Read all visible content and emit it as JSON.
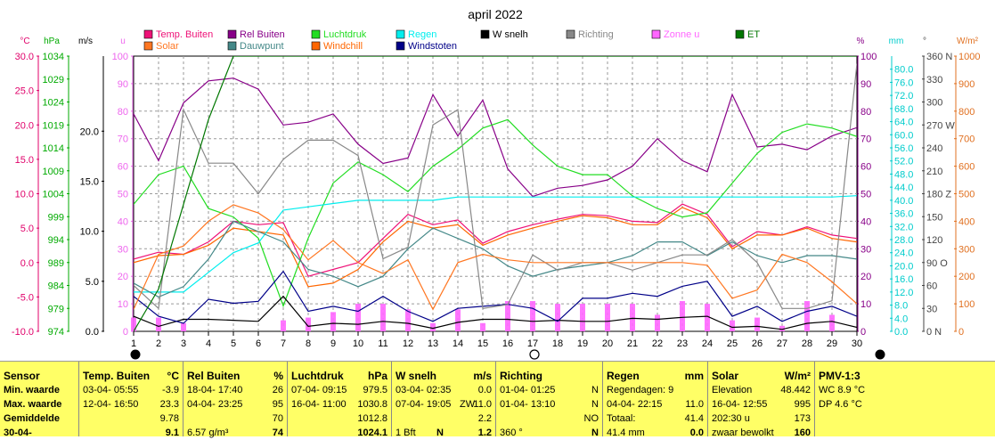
{
  "chart_data": {
    "type": "line",
    "title": "april 2022",
    "x": [
      1,
      2,
      3,
      4,
      5,
      6,
      7,
      8,
      9,
      10,
      11,
      12,
      13,
      14,
      15,
      16,
      17,
      18,
      19,
      20,
      21,
      22,
      23,
      24,
      25,
      26,
      27,
      28,
      29,
      30
    ],
    "x_ticks": [
      "1",
      "2",
      "3",
      "4",
      "5",
      "6",
      "7",
      "8",
      "9",
      "10",
      "11",
      "12",
      "13",
      "14",
      "15",
      "16",
      "17",
      "18",
      "19",
      "20",
      "21",
      "22",
      "23",
      "24",
      "25",
      "26",
      "27",
      "28",
      "29",
      "30"
    ],
    "axes": {
      "temp": {
        "unit": "°C",
        "range": [
          -10,
          30
        ],
        "ticks": [
          "30.0",
          "25.0",
          "20.0",
          "15.0",
          "10.0",
          "5.0",
          "0.0",
          "-5.0",
          "-10.0"
        ],
        "color": "#e0006a"
      },
      "press": {
        "unit": "hPa",
        "range": [
          974,
          1039
        ],
        "ticks": [
          "1034",
          "1029",
          "1024",
          "1019",
          "1014",
          "1009",
          "1004",
          "999",
          "994",
          "989",
          "984",
          "979",
          "974"
        ],
        "color": "#00aa00"
      },
      "wind": {
        "unit": "m/s",
        "range": [
          0,
          27.5
        ],
        "ticks": [
          "20.0",
          "15.0",
          "10.0",
          "5.0",
          "0.0"
        ],
        "color": "#000000"
      },
      "uv": {
        "unit": "u",
        "range": [
          0,
          100
        ],
        "ticks": [
          "100",
          "90",
          "80",
          "70",
          "60",
          "50",
          "40",
          "30",
          "20",
          "10",
          "0"
        ],
        "color": "#ee66ee"
      },
      "hum": {
        "unit": "%",
        "range": [
          0,
          100
        ],
        "ticks": [
          "100",
          "90",
          "80",
          "70",
          "60",
          "50",
          "40",
          "30",
          "20",
          "10",
          "0"
        ],
        "color": "#880088"
      },
      "rain": {
        "unit": "mm",
        "range": [
          0,
          84
        ],
        "ticks": [
          "80.0",
          "76.0",
          "72.0",
          "68.0",
          "64.0",
          "60.0",
          "56.0",
          "52.0",
          "48.0",
          "44.0",
          "40.0",
          "36.0",
          "32.0",
          "28.0",
          "24.0",
          "20.0",
          "16.0",
          "12.0",
          "8.0",
          "4.0",
          "0.0"
        ],
        "color": "#00cccc"
      },
      "dir": {
        "unit": "°",
        "range": [
          0,
          360
        ],
        "ticks": [
          "360 N",
          "330",
          "300",
          "270 W",
          "240",
          "210",
          "180 Z",
          "150",
          "120",
          "90 O",
          "60",
          "30",
          "0 N"
        ],
        "color": "#444444"
      },
      "solar": {
        "unit": "W/m²",
        "range": [
          0,
          1000
        ],
        "ticks": [
          "1000",
          "900",
          "800",
          "700",
          "600",
          "500",
          "400",
          "300",
          "200",
          "100",
          "0"
        ],
        "color": "#e07020"
      }
    },
    "legend": [
      {
        "name": "Temp. Buiten",
        "color": "#ee1177"
      },
      {
        "name": "Rel Buiten",
        "color": "#880088"
      },
      {
        "name": "Luchtdruk",
        "color": "#22dd22"
      },
      {
        "name": "Regen",
        "color": "#00eeee"
      },
      {
        "name": "W snelh",
        "color": "#000000"
      },
      {
        "name": "Richting",
        "color": "#888888"
      },
      {
        "name": "Zonne u",
        "color": "#ff66ff"
      },
      {
        "name": "ET",
        "color": "#007700"
      },
      {
        "name": "Solar",
        "color": "#ff7722"
      },
      {
        "name": "Dauwpunt",
        "color": "#448888"
      },
      {
        "name": "Windchill",
        "color": "#ff6600"
      },
      {
        "name": "Windstoten",
        "color": "#000088"
      }
    ],
    "series": [
      {
        "name": "Temp. Buiten",
        "axis": "temp",
        "color": "#ee1177",
        "values": [
          0.5,
          1.5,
          1.2,
          3.0,
          6.0,
          5.5,
          5.8,
          -2.0,
          -1.0,
          0.0,
          3.5,
          7.0,
          5.5,
          6.2,
          2.8,
          4.5,
          5.5,
          6.3,
          7.0,
          6.8,
          6.0,
          5.8,
          8.5,
          7.0,
          2.3,
          4.5,
          4.0,
          5.2,
          4.0,
          3.5
        ]
      },
      {
        "name": "Windchill",
        "axis": "temp",
        "color": "#ff6600",
        "values": [
          0.0,
          1.0,
          1.2,
          2.5,
          5.0,
          4.5,
          4.0,
          -3.5,
          -3.0,
          -1.0,
          3.0,
          6.0,
          5.0,
          5.5,
          2.5,
          4.0,
          5.0,
          6.0,
          6.8,
          6.5,
          5.5,
          5.5,
          8.0,
          6.5,
          2.0,
          4.0,
          4.0,
          5.0,
          3.5,
          3.0
        ]
      },
      {
        "name": "Rel Buiten",
        "axis": "hum",
        "color": "#880088",
        "values": [
          79,
          62,
          83,
          91,
          92,
          88,
          75,
          76,
          79,
          68,
          61,
          63,
          86,
          71,
          84,
          59,
          49,
          52,
          53,
          55,
          60,
          70,
          62,
          58,
          86,
          67,
          68,
          66,
          71,
          74
        ]
      },
      {
        "name": "Luchtdruk",
        "axis": "press",
        "color": "#22dd22",
        "values": [
          1004,
          1011,
          1013,
          1003,
          1001,
          996,
          980,
          996,
          1009,
          1014,
          1011,
          1007,
          1013,
          1017,
          1022,
          1024,
          1018,
          1013,
          1011,
          1011,
          1006,
          1003,
          1001,
          1002,
          1009,
          1016,
          1021,
          1023,
          1022,
          1020
        ]
      },
      {
        "name": "Regen",
        "axis": "rain",
        "color": "#00eeee",
        "values": [
          12,
          12,
          12,
          18,
          24,
          27,
          37,
          38,
          39,
          40,
          40,
          40,
          40,
          41,
          41,
          41,
          41,
          41,
          41,
          41,
          41,
          41,
          41,
          41,
          41,
          41,
          41,
          41,
          41,
          41.4
        ]
      },
      {
        "name": "Dauwpunt",
        "axis": "temp",
        "color": "#448888",
        "values": [
          -3.0,
          -5.0,
          -3.5,
          0.5,
          6.0,
          4.5,
          3.0,
          -1.0,
          -2.0,
          -3.5,
          -2.0,
          2.0,
          5.0,
          3.5,
          2.0,
          -0.5,
          -2.0,
          -1.0,
          -0.5,
          0.0,
          1.0,
          3.0,
          3.0,
          1.0,
          3.0,
          1.0,
          0.0,
          1.0,
          1.0,
          0.5
        ]
      },
      {
        "name": "W snelh",
        "axis": "wind",
        "color": "#000000",
        "values": [
          1.5,
          0.5,
          1.2,
          1.2,
          1.1,
          1.0,
          3.5,
          0.5,
          0.8,
          0.7,
          1.0,
          0.8,
          0.3,
          0.9,
          1.2,
          1.2,
          1.0,
          1.1,
          1.0,
          1.0,
          1.3,
          1.2,
          1.4,
          1.5,
          0.4,
          0.5,
          0.2,
          0.8,
          1.0,
          0.4
        ]
      },
      {
        "name": "Windstoten",
        "axis": "wind",
        "color": "#000088",
        "values": [
          3.5,
          1.5,
          0.8,
          3.2,
          2.8,
          3.0,
          6.0,
          2.0,
          2.5,
          2.0,
          3.5,
          2.0,
          1.0,
          2.3,
          2.5,
          2.7,
          2.3,
          1.0,
          3.3,
          3.3,
          3.8,
          3.5,
          4.5,
          5.0,
          1.5,
          2.5,
          1.0,
          2.0,
          2.5,
          1.5
        ]
      },
      {
        "name": "Richting",
        "axis": "dir",
        "color": "#888888",
        "values": [
          60,
          30,
          290,
          220,
          220,
          180,
          225,
          250,
          250,
          230,
          95,
          110,
          270,
          290,
          30,
          35,
          100,
          80,
          90,
          90,
          80,
          90,
          100,
          100,
          120,
          90,
          30,
          30,
          40,
          350
        ]
      },
      {
        "name": "Solar",
        "axis": "solar",
        "color": "#ff7722",
        "values": [
          80,
          280,
          310,
          400,
          460,
          430,
          370,
          260,
          330,
          250,
          210,
          260,
          80,
          250,
          280,
          260,
          250,
          250,
          250,
          250,
          250,
          250,
          250,
          240,
          120,
          150,
          280,
          250,
          180,
          100
        ]
      },
      {
        "name": "ET",
        "axis": "press",
        "color": "#007700",
        "values": [
          974,
          984,
          1004,
          1024,
          1039,
          1039,
          1039,
          1039,
          1039,
          1039,
          1039,
          1039,
          1039,
          1039,
          1039,
          1039,
          1039,
          1039,
          1039,
          1039,
          1039,
          1039,
          1039,
          1039,
          1039,
          1039,
          1039,
          1039,
          1039,
          1039
        ]
      }
    ],
    "bars": {
      "name": "Zonne u",
      "axis": "uv",
      "color": "#ff66ff",
      "values": [
        5,
        5,
        3,
        0,
        0,
        0,
        4,
        5,
        7,
        10,
        10,
        8,
        3,
        8,
        3,
        11,
        11,
        10,
        10,
        10,
        10,
        6,
        11,
        10,
        4,
        5,
        2,
        11,
        6,
        0
      ]
    },
    "moon_phases": [
      {
        "day": 1,
        "phase": "new"
      },
      {
        "day": 17,
        "phase": "full"
      },
      {
        "day": 30,
        "phase": "new"
      }
    ]
  },
  "table": {
    "rows": [
      "Sensor",
      "Min. waarde",
      "Max. waarde",
      "Gemiddelde",
      "30-04-"
    ],
    "temp": {
      "title": "Temp. Buiten",
      "unit": "°C",
      "r1": [
        "03-04-  05:55",
        "-3.9"
      ],
      "r2": [
        "12-04-  16:50",
        "23.3"
      ],
      "r3": [
        "",
        "9.78"
      ],
      "r4": [
        "",
        "9.1"
      ]
    },
    "hum": {
      "title": "Rel Buiten",
      "unit": "%",
      "r1": [
        "18-04-  17:40",
        "26"
      ],
      "r2": [
        "04-04-  23:25",
        "95"
      ],
      "r3": [
        "",
        "70"
      ],
      "r4": [
        "6.57 g/m³",
        "74"
      ]
    },
    "press": {
      "title": "Luchtdruk",
      "unit": "hPa",
      "r1": [
        "07-04-  09:15",
        "979.5"
      ],
      "r2": [
        "16-04-  11:00",
        "1030.8"
      ],
      "r3": [
        "",
        "1012.8"
      ],
      "r4": [
        "",
        "1024.1"
      ]
    },
    "wind": {
      "title": "W snelh",
      "unit": "m/s",
      "r1": [
        "03-04-  02:35",
        "",
        "0.0"
      ],
      "r2": [
        "07-04-  19:05",
        "ZW",
        "11.0"
      ],
      "r3": [
        "",
        "",
        "2.2"
      ],
      "r4": [
        "1 Bft",
        "N",
        "1.2"
      ]
    },
    "dir": {
      "title": "Richting",
      "r1": [
        "01-04-  01:25",
        "N"
      ],
      "r2": [
        "01-04-  13:10",
        "N"
      ],
      "r3": [
        "",
        "NO"
      ],
      "r4": [
        "360 °",
        "N"
      ]
    },
    "rain": {
      "title": "Regen",
      "unit": "mm",
      "r1": [
        "Regendagen: 9",
        ""
      ],
      "r2": [
        "04-04-  22:15",
        "11.0"
      ],
      "r3": [
        "Totaal:",
        "41.4"
      ],
      "r4": [
        "41.4 mm",
        "0.0"
      ]
    },
    "solar": {
      "title": "Solar",
      "unit": "W/m²",
      "r1": [
        "Elevation",
        "48.442"
      ],
      "r2": [
        "16-04-  12:55",
        "995"
      ],
      "r3": [
        "202:30 u",
        "173"
      ],
      "r4": [
        "zwaar bewolkt",
        "160"
      ]
    },
    "pmv": {
      "title": "PMV-1:3",
      "r1": "WC 8.9 °C",
      "r2": "DP 4.6 °C"
    }
  }
}
